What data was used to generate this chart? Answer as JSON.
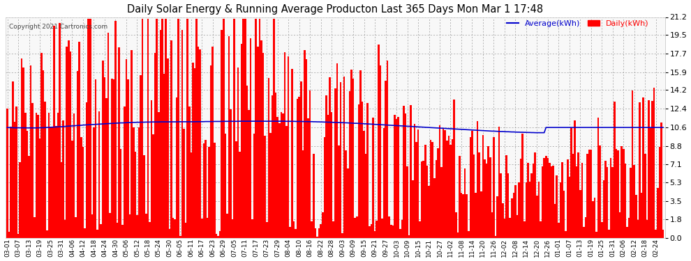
{
  "title": "Daily Solar Energy & Running Average Producton Last 365 Days Mon Mar 1 17:48",
  "copyright": "Copyright 2021 Cartronics.com",
  "legend_avg": "Average(kWh)",
  "legend_daily": "Daily(kWh)",
  "yticks": [
    0.0,
    1.8,
    3.5,
    5.3,
    7.1,
    8.8,
    10.6,
    12.4,
    14.2,
    15.9,
    17.7,
    19.5,
    21.2
  ],
  "ymax": 21.2,
  "bar_color": "#ff0000",
  "avg_color": "#0000cc",
  "bg_color": "#ffffff",
  "plot_bg_color": "#f8f8f8",
  "grid_color": "#999999",
  "title_color": "#000000",
  "copyright_color": "#444444",
  "xtick_labels": [
    "03-01",
    "03-07",
    "03-13",
    "03-19",
    "03-25",
    "03-31",
    "04-06",
    "04-12",
    "04-18",
    "04-24",
    "04-30",
    "05-06",
    "05-12",
    "05-18",
    "05-24",
    "05-30",
    "06-05",
    "06-11",
    "06-17",
    "06-23",
    "06-29",
    "07-05",
    "07-11",
    "07-17",
    "07-23",
    "07-29",
    "08-04",
    "08-10",
    "08-16",
    "08-22",
    "08-28",
    "09-03",
    "09-09",
    "09-15",
    "09-21",
    "09-27",
    "10-03",
    "10-09",
    "10-15",
    "10-21",
    "10-27",
    "11-02",
    "11-08",
    "11-14",
    "11-20",
    "11-26",
    "12-02",
    "12-08",
    "12-14",
    "12-20",
    "12-26",
    "01-01",
    "01-07",
    "01-13",
    "01-19",
    "01-25",
    "01-31",
    "02-06",
    "02-12",
    "02-18",
    "02-24"
  ],
  "n_days": 365,
  "avg_values": [
    10.6,
    10.59,
    10.59,
    10.58,
    10.57,
    10.57,
    10.57,
    10.57,
    10.57,
    10.57,
    10.57,
    10.56,
    10.56,
    10.56,
    10.56,
    10.56,
    10.56,
    10.57,
    10.57,
    10.58,
    10.58,
    10.59,
    10.6,
    10.61,
    10.62,
    10.63,
    10.64,
    10.65,
    10.66,
    10.67,
    10.68,
    10.69,
    10.7,
    10.72,
    10.73,
    10.74,
    10.75,
    10.76,
    10.78,
    10.79,
    10.8,
    10.81,
    10.83,
    10.84,
    10.85,
    10.86,
    10.87,
    10.88,
    10.89,
    10.9,
    10.91,
    10.92,
    10.93,
    10.94,
    10.95,
    10.96,
    10.97,
    10.98,
    10.99,
    11.0,
    11.01,
    11.02,
    11.03,
    11.04,
    11.04,
    11.05,
    11.06,
    11.07,
    11.07,
    11.08,
    11.09,
    11.09,
    11.1,
    11.1,
    11.11,
    11.11,
    11.11,
    11.12,
    11.12,
    11.12,
    11.13,
    11.13,
    11.13,
    11.13,
    11.13,
    11.14,
    11.14,
    11.14,
    11.14,
    11.14,
    11.14,
    11.14,
    11.14,
    11.14,
    11.14,
    11.15,
    11.15,
    11.15,
    11.15,
    11.15,
    11.15,
    11.15,
    11.15,
    11.15,
    11.15,
    11.16,
    11.16,
    11.16,
    11.16,
    11.16,
    11.17,
    11.17,
    11.17,
    11.17,
    11.17,
    11.18,
    11.18,
    11.18,
    11.18,
    11.18,
    11.19,
    11.19,
    11.19,
    11.19,
    11.19,
    11.19,
    11.19,
    11.19,
    11.19,
    11.2,
    11.2,
    11.2,
    11.2,
    11.2,
    11.2,
    11.2,
    11.2,
    11.2,
    11.2,
    11.2,
    11.2,
    11.2,
    11.2,
    11.2,
    11.2,
    11.2,
    11.2,
    11.2,
    11.2,
    11.2,
    11.2,
    11.2,
    11.2,
    11.2,
    11.2,
    11.19,
    11.19,
    11.19,
    11.19,
    11.19,
    11.18,
    11.18,
    11.18,
    11.18,
    11.17,
    11.17,
    11.17,
    11.16,
    11.16,
    11.16,
    11.15,
    11.15,
    11.14,
    11.14,
    11.13,
    11.13,
    11.12,
    11.12,
    11.11,
    11.11,
    11.1,
    11.09,
    11.09,
    11.08,
    11.07,
    11.07,
    11.06,
    11.05,
    11.05,
    11.04,
    11.03,
    11.02,
    11.01,
    11.0,
    11.0,
    10.99,
    10.98,
    10.97,
    10.96,
    10.95,
    10.94,
    10.93,
    10.92,
    10.91,
    10.9,
    10.89,
    10.88,
    10.87,
    10.86,
    10.85,
    10.84,
    10.83,
    10.82,
    10.81,
    10.8,
    10.79,
    10.78,
    10.77,
    10.76,
    10.75,
    10.74,
    10.73,
    10.72,
    10.71,
    10.7,
    10.69,
    10.68,
    10.67,
    10.66,
    10.65,
    10.64,
    10.63,
    10.62,
    10.61,
    10.6,
    10.59,
    10.58,
    10.57,
    10.56,
    10.55,
    10.54,
    10.53,
    10.52,
    10.51,
    10.5,
    10.49,
    10.48,
    10.47,
    10.46,
    10.45,
    10.44,
    10.43,
    10.42,
    10.41,
    10.4,
    10.39,
    10.38,
    10.37,
    10.36,
    10.35,
    10.34,
    10.33,
    10.32,
    10.31,
    10.3,
    10.29,
    10.28,
    10.27,
    10.26,
    10.25,
    10.25,
    10.24,
    10.23,
    10.22,
    10.21,
    10.21,
    10.2,
    10.19,
    10.19,
    10.18,
    10.17,
    10.17,
    10.16,
    10.15,
    10.15,
    10.14,
    10.14,
    10.13,
    10.13,
    10.12,
    10.12,
    10.11,
    10.11,
    10.1,
    10.1,
    10.1,
    10.1,
    10.1,
    10.1,
    10.6,
    10.6,
    10.6,
    10.6,
    10.6,
    10.6,
    10.6,
    10.6,
    10.6,
    10.6,
    10.6,
    10.6,
    10.6,
    10.6,
    10.6,
    10.6,
    10.6,
    10.6,
    10.6,
    10.6,
    10.6,
    10.6,
    10.6,
    10.6,
    10.6,
    10.6,
    10.6,
    10.6,
    10.6,
    10.6,
    10.6,
    10.6,
    10.6,
    10.6,
    10.6,
    10.6,
    10.6,
    10.6,
    10.6,
    10.6,
    10.6,
    10.6,
    10.6,
    10.6,
    10.6,
    10.6,
    10.6,
    10.6,
    10.6,
    10.6,
    10.6,
    10.6,
    10.6,
    10.6,
    10.6,
    10.6,
    10.6,
    10.6,
    10.6,
    10.6,
    10.6,
    10.6,
    10.6,
    10.6,
    10.6,
    10.6
  ],
  "daily_seed": 12345,
  "figwidth": 9.9,
  "figheight": 3.75,
  "dpi": 100
}
